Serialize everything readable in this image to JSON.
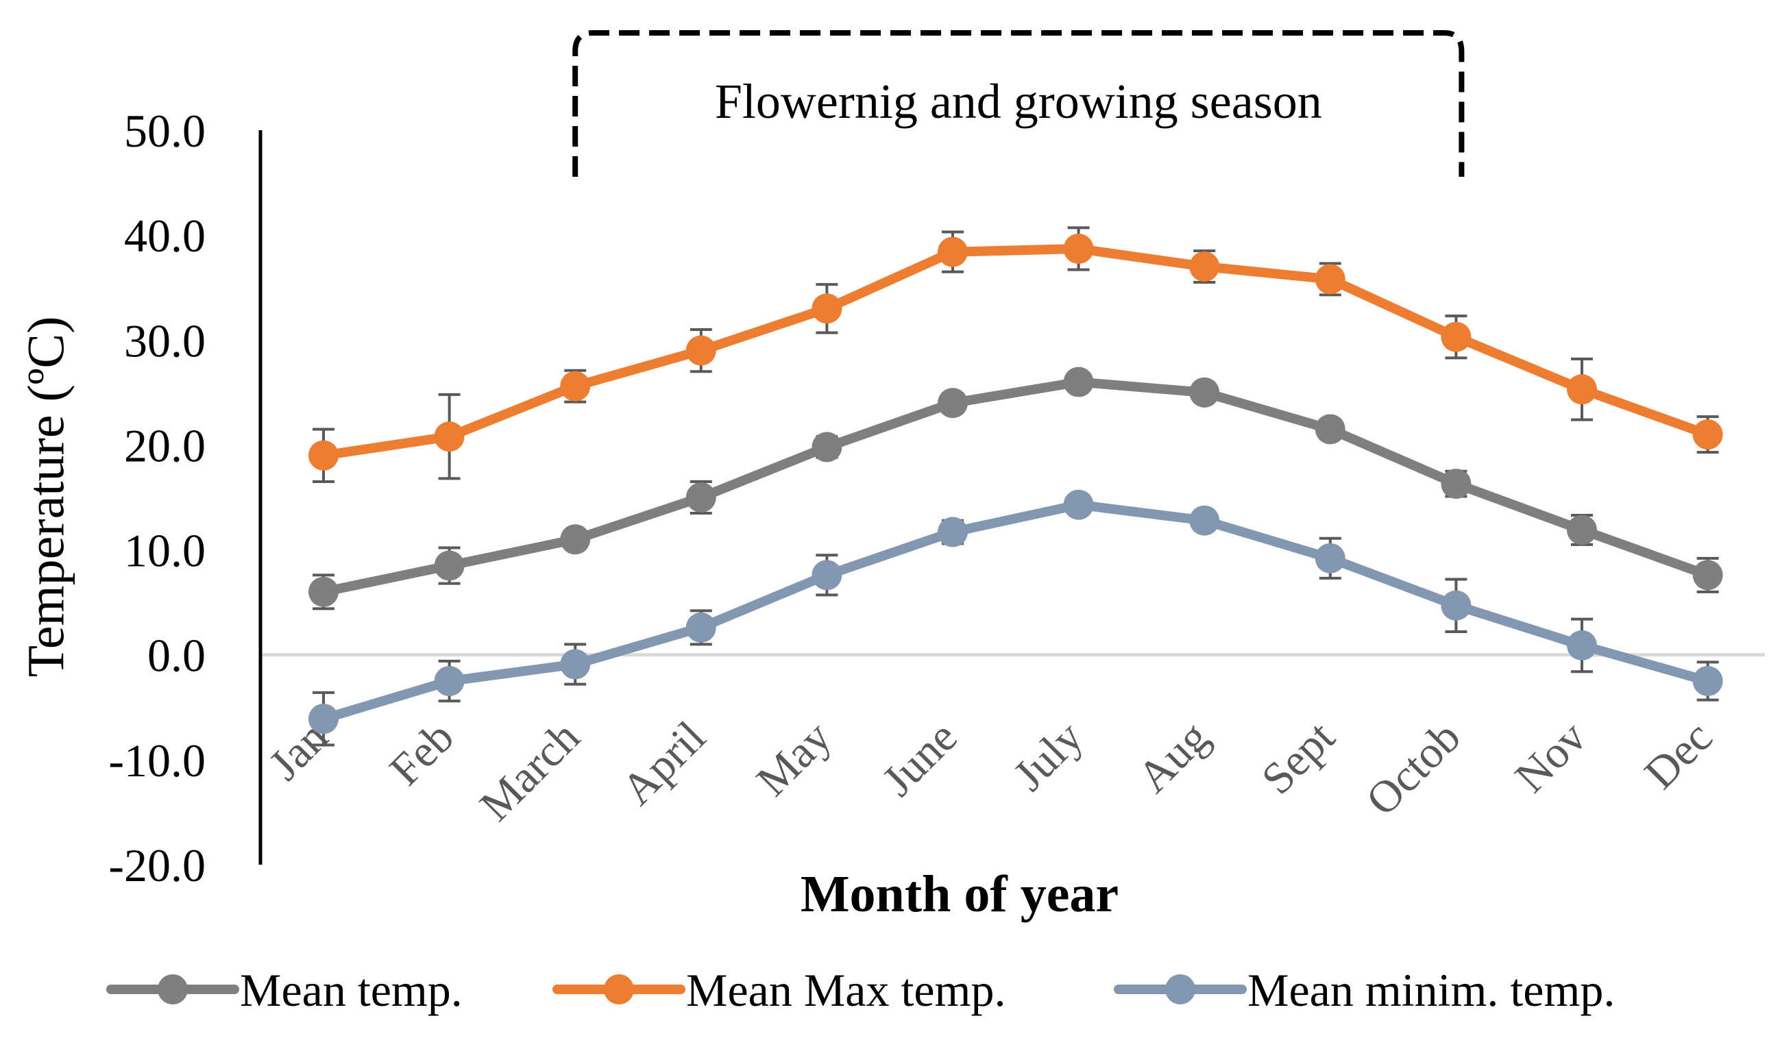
{
  "chart_data": {
    "type": "line",
    "title": "",
    "xlabel": "Month of year",
    "ylabel": "Temperature (ºC)",
    "ylim": [
      -20,
      50
    ],
    "ytick_step": 10,
    "ytick_labels": [
      "-20.0",
      "-10.0",
      "0.0",
      "10.0",
      "20.0",
      "30.0",
      "40.0",
      "50.0"
    ],
    "categories": [
      "Jan",
      "Feb",
      "March",
      "April",
      "May",
      "June",
      "July",
      "Aug",
      "Sept",
      "Octob",
      "Nov",
      "Dec"
    ],
    "series": [
      {
        "name": "Mean temp.",
        "color": "#7f7f7f",
        "values": [
          6.0,
          8.5,
          11.0,
          15.0,
          19.8,
          24.0,
          26.0,
          25.0,
          21.5,
          16.3,
          11.9,
          7.6
        ],
        "errors": [
          1.6,
          1.7,
          0.7,
          1.5,
          1.0,
          0.9,
          0.7,
          0.8,
          0.9,
          1.2,
          1.4,
          1.6
        ]
      },
      {
        "name": "Mean Max temp.",
        "color": "#ed7d31",
        "values": [
          19.0,
          20.8,
          25.6,
          29.0,
          33.0,
          38.4,
          38.7,
          37.0,
          35.8,
          30.3,
          25.3,
          21.0
        ],
        "errors": [
          2.5,
          4.0,
          1.5,
          2.0,
          2.3,
          1.9,
          2.0,
          1.5,
          1.5,
          2.0,
          2.9,
          1.7
        ]
      },
      {
        "name": "Mean minim. temp.",
        "color": "#8497b0",
        "values": [
          -6.1,
          -2.5,
          -0.9,
          2.6,
          7.6,
          11.7,
          14.3,
          12.8,
          9.2,
          4.7,
          0.9,
          -2.5
        ],
        "errors": [
          2.5,
          1.9,
          1.9,
          1.6,
          1.9,
          1.1,
          0.7,
          0.8,
          1.9,
          2.5,
          2.5,
          1.8
        ]
      }
    ],
    "annotation": {
      "text": "Flowernig and growing season",
      "from_category": "March",
      "to_category": "Octob",
      "style": "dashed bracket"
    },
    "legend": {
      "position": "bottom",
      "entries": [
        "Mean temp.",
        "Mean Max temp.",
        "Mean minim. temp."
      ]
    },
    "colors": {
      "zero_line": "#d9d9d9",
      "axis": "#000000",
      "errorbar": "#595959",
      "tick_text": "#595959"
    }
  }
}
